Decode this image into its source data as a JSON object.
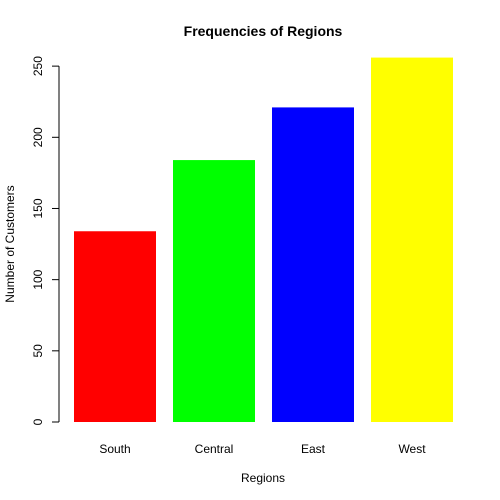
{
  "chart_data": {
    "type": "bar",
    "title": "Frequencies of Regions",
    "xlabel": "Regions",
    "ylabel": "Number of Customers",
    "categories": [
      "South",
      "Central",
      "East",
      "West"
    ],
    "values": [
      134,
      184,
      221,
      256
    ],
    "colors": [
      "#ff0000",
      "#00ff00",
      "#0000ff",
      "#ffff00"
    ],
    "ylim": [
      0,
      256
    ],
    "yticks": [
      0,
      50,
      100,
      150,
      200,
      250
    ],
    "ytick_labels": [
      "0",
      "50",
      "100",
      "150",
      "200",
      "250"
    ],
    "grid": false,
    "legend": "none"
  }
}
